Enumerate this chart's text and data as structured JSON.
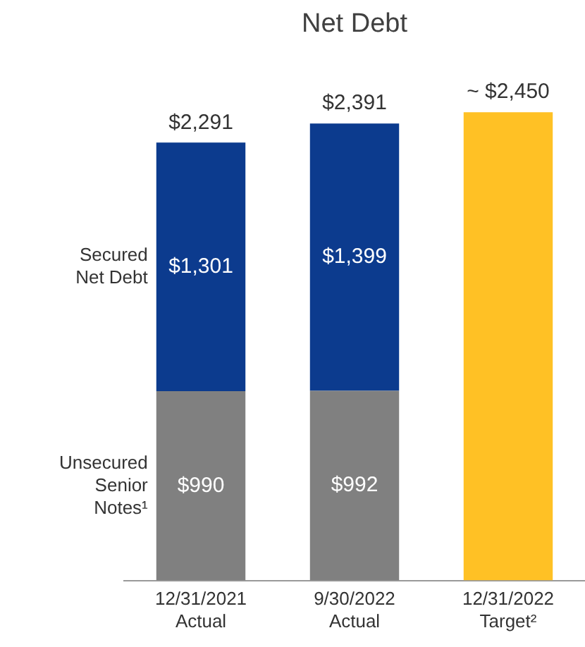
{
  "chart_data": {
    "type": "bar",
    "title": "Net Debt",
    "stacked": true,
    "legend": false,
    "grid": false,
    "categories": [
      "12/31/2021\nActual",
      "9/30/2022\nActual",
      "12/31/2022\nTarget²"
    ],
    "series": [
      {
        "name": "Unsecured\nSenior\nNotes¹",
        "color": "#808080",
        "values": [
          990,
          992,
          null
        ],
        "value_labels": [
          "$990",
          "$992",
          null
        ]
      },
      {
        "name": "Secured\nNet Debt",
        "color": "#0c3b8e",
        "values": [
          1301,
          1399,
          null
        ],
        "value_labels": [
          "$1,301",
          "$1,399",
          null
        ]
      },
      {
        "color": "#ffc125",
        "values": [
          null,
          null,
          2450
        ]
      }
    ],
    "totals": [
      "$2,291",
      "$2,391",
      "~ $2,450"
    ]
  }
}
